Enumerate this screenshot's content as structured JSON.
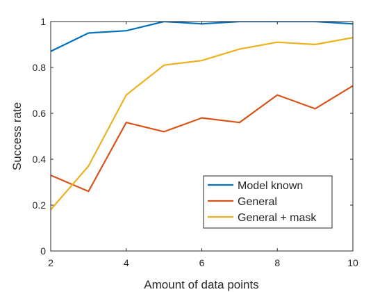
{
  "chart_data": {
    "type": "line",
    "xlabel": "Amount of data points",
    "ylabel": "Success rate",
    "xlim": [
      2,
      10
    ],
    "ylim": [
      0,
      1
    ],
    "xticks": [
      2,
      4,
      6,
      8,
      10
    ],
    "yticks": [
      0,
      0.2,
      0.4,
      0.6,
      0.8,
      1
    ],
    "xtick_labels": [
      "2",
      "4",
      "6",
      "8",
      "10"
    ],
    "ytick_labels": [
      "0",
      "0.2",
      "0.4",
      "0.6",
      "0.8",
      "1"
    ],
    "grid": false,
    "legend_position": "bottom-right",
    "x": [
      2,
      3,
      4,
      5,
      6,
      7,
      8,
      9,
      10
    ],
    "series": [
      {
        "name": "Model known",
        "color": "#0072BD",
        "values": [
          0.87,
          0.95,
          0.96,
          1.0,
          0.99,
          1.0,
          1.0,
          1.0,
          0.99
        ]
      },
      {
        "name": "General",
        "color": "#D95319",
        "values": [
          0.33,
          0.26,
          0.56,
          0.52,
          0.58,
          0.56,
          0.68,
          0.62,
          0.72
        ]
      },
      {
        "name": "General + mask",
        "color": "#EDB120",
        "values": [
          0.18,
          0.37,
          0.68,
          0.81,
          0.83,
          0.88,
          0.91,
          0.9,
          0.93
        ]
      }
    ]
  }
}
